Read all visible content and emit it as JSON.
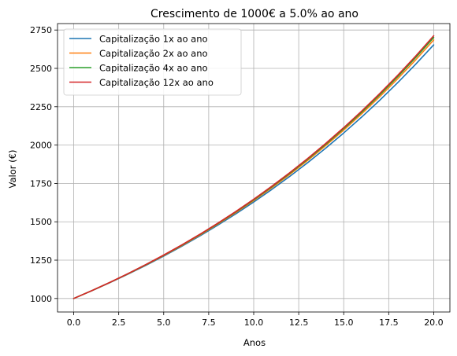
{
  "chart_data": {
    "type": "line",
    "title": "Crescimento de 1000€ a 5.0% ao ano",
    "xlabel": "Anos",
    "ylabel": "Valor (€)",
    "xlim": [
      -0.9,
      20.9
    ],
    "ylim": [
      912,
      2792
    ],
    "xticks": [
      0.0,
      2.5,
      5.0,
      7.5,
      10.0,
      12.5,
      15.0,
      17.5,
      20.0
    ],
    "xtick_labels": [
      "0.0",
      "2.5",
      "5.0",
      "7.5",
      "10.0",
      "12.5",
      "15.0",
      "17.5",
      "20.0"
    ],
    "yticks": [
      1000,
      1250,
      1500,
      1750,
      2000,
      2250,
      2500,
      2750
    ],
    "ytick_labels": [
      "1000",
      "1250",
      "1500",
      "1750",
      "2000",
      "2250",
      "2500",
      "2750"
    ],
    "grid": true,
    "legend_position": "top-left",
    "x": [
      0,
      1,
      2,
      3,
      4,
      5,
      6,
      7,
      8,
      9,
      10,
      11,
      12,
      13,
      14,
      15,
      16,
      17,
      18,
      19,
      20
    ],
    "series": [
      {
        "name": "Capitalização 1x ao ano",
        "color": "#1f77b4",
        "values": [
          1000,
          1050,
          1102.5,
          1157.6,
          1215.5,
          1276.3,
          1340.1,
          1407.1,
          1477.5,
          1551.3,
          1628.9,
          1710.3,
          1795.9,
          1885.6,
          1979.9,
          2078.9,
          2182.9,
          2292.0,
          2406.6,
          2527.0,
          2653.3
        ]
      },
      {
        "name": "Capitalização 2x ao ano",
        "color": "#ff7f0e",
        "values": [
          1000,
          1050.6,
          1103.8,
          1159.7,
          1218.4,
          1280.1,
          1344.9,
          1413.0,
          1484.5,
          1559.6,
          1638.6,
          1721.6,
          1808.7,
          1900.3,
          1996.5,
          2097.6,
          2203.7,
          2315.3,
          2432.5,
          2555.6,
          2685.1
        ]
      },
      {
        "name": "Capitalização 4x ao ano",
        "color": "#2ca02c",
        "values": [
          1000,
          1050.9,
          1104.5,
          1160.8,
          1219.9,
          1282.0,
          1347.4,
          1416.0,
          1488.2,
          1564.0,
          1643.6,
          1727.4,
          1815.4,
          1907.9,
          2005.0,
          2107.2,
          2214.5,
          2327.3,
          2445.9,
          2570.5,
          2701.5
        ]
      },
      {
        "name": "Capitalização 12x ao ano",
        "color": "#d62728",
        "values": [
          1000,
          1051.2,
          1104.9,
          1161.5,
          1220.9,
          1283.4,
          1349.0,
          1418.0,
          1490.6,
          1566.8,
          1647.0,
          1731.3,
          1819.9,
          1913.0,
          2010.8,
          2113.7,
          2221.8,
          2335.5,
          2455.0,
          2580.6,
          2712.6
        ]
      }
    ]
  }
}
